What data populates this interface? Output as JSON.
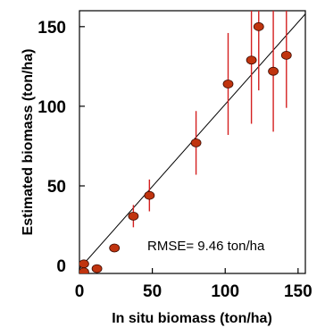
{
  "chart_data": {
    "type": "scatter",
    "xlabel": "In situ biomass (ton/ha)",
    "ylabel": "Estimated biomass (ton/ha)",
    "xlim": [
      0,
      155
    ],
    "ylim": [
      -5,
      160
    ],
    "xticks": [
      0,
      50,
      100,
      150
    ],
    "yticks": [
      0,
      50,
      100,
      150
    ],
    "annotation": "RMSE= 9.46 ton/ha",
    "grid": false,
    "legend": "none",
    "point_color": "#c0340f",
    "error_bar_color": "#d42020",
    "line_color": "#000000",
    "reference_line": [
      [
        0,
        -2
      ],
      [
        155,
        158
      ]
    ],
    "points": [
      {
        "x": 3,
        "y": 1,
        "err": 0
      },
      {
        "x": 3,
        "y": -4,
        "err": 0
      },
      {
        "x": 12,
        "y": -2,
        "err": 0
      },
      {
        "x": 24,
        "y": 11,
        "err": 0
      },
      {
        "x": 37,
        "y": 31,
        "err": 7
      },
      {
        "x": 48,
        "y": 44,
        "err": 10
      },
      {
        "x": 80,
        "y": 77,
        "err": 20
      },
      {
        "x": 102,
        "y": 114,
        "err": 32
      },
      {
        "x": 118,
        "y": 129,
        "err": 40
      },
      {
        "x": 123,
        "y": 150,
        "err": 40
      },
      {
        "x": 133,
        "y": 122,
        "err": 38
      },
      {
        "x": 142,
        "y": 132,
        "err": 33
      }
    ]
  }
}
